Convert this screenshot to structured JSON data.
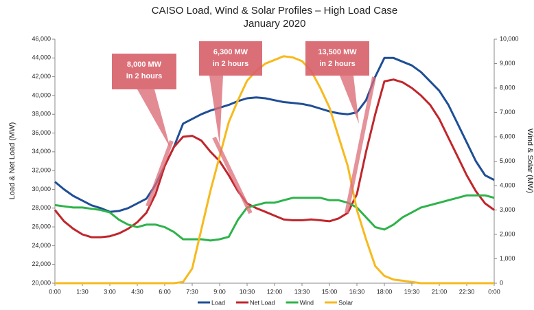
{
  "chart_data": {
    "type": "line",
    "title": "CAISO Load, Wind & Solar Profiles – High Load Case",
    "subtitle": "January 2020",
    "ylabel": "Load & Net Load (MW)",
    "y2label": "Wind & Solar (MW)",
    "x": [
      0,
      0.5,
      1,
      1.5,
      2,
      2.5,
      3,
      3.5,
      4,
      4.5,
      5,
      5.5,
      6,
      6.5,
      7,
      7.5,
      8,
      8.5,
      9,
      9.5,
      10,
      10.5,
      11,
      11.5,
      12,
      12.5,
      13,
      13.5,
      14,
      14.5,
      15,
      15.5,
      16,
      16.5,
      17,
      17.5,
      18,
      18.5,
      19,
      19.5,
      20,
      20.5,
      21,
      21.5,
      22,
      22.5,
      23,
      23.5,
      24
    ],
    "xlim": [
      0,
      24
    ],
    "xticks": [
      {
        "value": 0,
        "label": "0:00"
      },
      {
        "value": 1.5,
        "label": "1:30"
      },
      {
        "value": 3,
        "label": "3:00"
      },
      {
        "value": 4.5,
        "label": "4:30"
      },
      {
        "value": 6,
        "label": "6:00"
      },
      {
        "value": 7.5,
        "label": "7:30"
      },
      {
        "value": 9,
        "label": "9:00"
      },
      {
        "value": 10.5,
        "label": "10:30"
      },
      {
        "value": 12,
        "label": "12:00"
      },
      {
        "value": 13.5,
        "label": "13:30"
      },
      {
        "value": 15,
        "label": "15:00"
      },
      {
        "value": 16.5,
        "label": "16:30"
      },
      {
        "value": 18,
        "label": "18:00"
      },
      {
        "value": 19.5,
        "label": "19:30"
      },
      {
        "value": 21,
        "label": "21:00"
      },
      {
        "value": 22.5,
        "label": "22:30"
      },
      {
        "value": 24,
        "label": "0:00"
      }
    ],
    "ylim": [
      20000,
      46000
    ],
    "yticks": [
      {
        "value": 20000,
        "label": "20,000"
      },
      {
        "value": 22000,
        "label": "22,000"
      },
      {
        "value": 24000,
        "label": "24,000"
      },
      {
        "value": 26000,
        "label": "26,000"
      },
      {
        "value": 28000,
        "label": "28,000"
      },
      {
        "value": 30000,
        "label": "30,000"
      },
      {
        "value": 32000,
        "label": "32,000"
      },
      {
        "value": 34000,
        "label": "34,000"
      },
      {
        "value": 36000,
        "label": "36,000"
      },
      {
        "value": 38000,
        "label": "38,000"
      },
      {
        "value": 40000,
        "label": "40,000"
      },
      {
        "value": 42000,
        "label": "42,000"
      },
      {
        "value": 44000,
        "label": "44,000"
      },
      {
        "value": 46000,
        "label": "46,000"
      }
    ],
    "y2lim": [
      0,
      10000
    ],
    "y2ticks": [
      0,
      {
        "value": 1000,
        "label": "1,000"
      },
      {
        "value": 2000,
        "label": "2,000"
      },
      {
        "value": 3000,
        "label": "3,000"
      },
      {
        "value": 4000,
        "label": "4,000"
      },
      {
        "value": 5000,
        "label": "5,000"
      },
      {
        "value": 6000,
        "label": "6,000"
      },
      {
        "value": 7000,
        "label": "7,000"
      },
      {
        "value": 8000,
        "label": "8,000"
      },
      {
        "value": 9000,
        "label": "9,000"
      },
      {
        "value": 10000,
        "label": "10,000"
      }
    ],
    "series": [
      {
        "name": "Load",
        "color": "#1f4e96",
        "values": [
          30800,
          30000,
          29300,
          28800,
          28300,
          28000,
          27600,
          27700,
          28000,
          28500,
          29000,
          30500,
          32500,
          34500,
          37000,
          37500,
          38000,
          38400,
          38700,
          39000,
          39400,
          39700,
          39800,
          39700,
          39500,
          39300,
          39200,
          39100,
          38900,
          38600,
          38300,
          38100,
          38000,
          38200,
          39500,
          42000,
          44000,
          44000,
          43600,
          43200,
          42500,
          41500,
          40500,
          39000,
          37000,
          35000,
          33000,
          31500,
          31000
        ]
      },
      {
        "name": "Net Load",
        "color": "#c0262c",
        "values": [
          27800,
          26600,
          25800,
          25200,
          24900,
          24900,
          25000,
          25300,
          25800,
          26500,
          27500,
          29500,
          32500,
          34500,
          35600,
          35700,
          35200,
          34000,
          33000,
          31500,
          29800,
          28500,
          28000,
          27600,
          27200,
          26800,
          26700,
          26700,
          26800,
          26700,
          26600,
          26900,
          27500,
          29500,
          34000,
          38000,
          41500,
          41700,
          41400,
          40800,
          40000,
          39000,
          37500,
          35500,
          33500,
          31500,
          29800,
          28500,
          27800
        ]
      },
      {
        "name": "Wind",
        "color": "#2db34a",
        "axis": "y2",
        "values": [
          3200,
          3150,
          3100,
          3100,
          3050,
          3000,
          2900,
          2600,
          2400,
          2300,
          2400,
          2400,
          2300,
          2100,
          1800,
          1800,
          1800,
          1750,
          1800,
          1900,
          2600,
          3100,
          3200,
          3300,
          3300,
          3400,
          3500,
          3500,
          3500,
          3500,
          3400,
          3400,
          3300,
          3100,
          2700,
          2300,
          2200,
          2400,
          2700,
          2900,
          3100,
          3200,
          3300,
          3400,
          3500,
          3600,
          3600,
          3600,
          3500
        ]
      },
      {
        "name": "Solar",
        "color": "#f7b91c",
        "axis": "y2",
        "values": [
          0,
          0,
          0,
          0,
          0,
          0,
          0,
          0,
          0,
          0,
          0,
          0,
          0,
          0,
          50,
          600,
          2200,
          3800,
          5200,
          6600,
          7500,
          8300,
          8700,
          9000,
          9150,
          9300,
          9250,
          9100,
          8700,
          8000,
          7200,
          6000,
          4800,
          3000,
          1800,
          700,
          300,
          150,
          100,
          50,
          0,
          0,
          0,
          0,
          0,
          0,
          0,
          0,
          0
        ]
      }
    ],
    "annotations": [
      [
        "8,000 MW",
        "in 2 hours"
      ],
      [
        "6,300 MW",
        "in 2 hours"
      ],
      [
        "13,500 MW",
        "in 2 hours"
      ]
    ],
    "legend": "bottom"
  }
}
